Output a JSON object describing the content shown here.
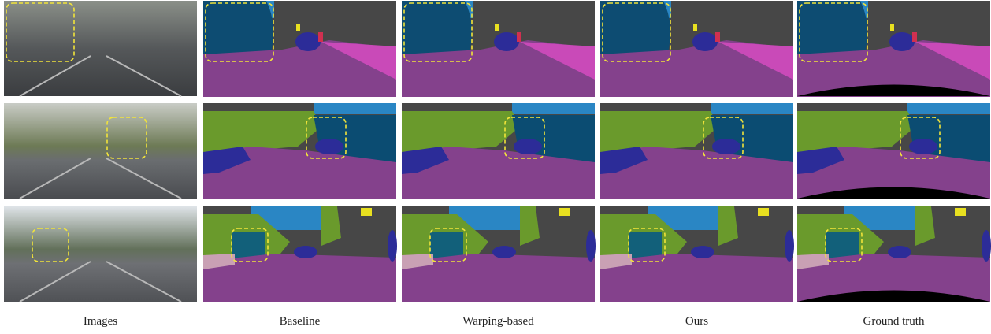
{
  "columns": [
    "Images",
    "Baseline",
    "Warping-based",
    "Ours",
    "Ground truth"
  ]
}
